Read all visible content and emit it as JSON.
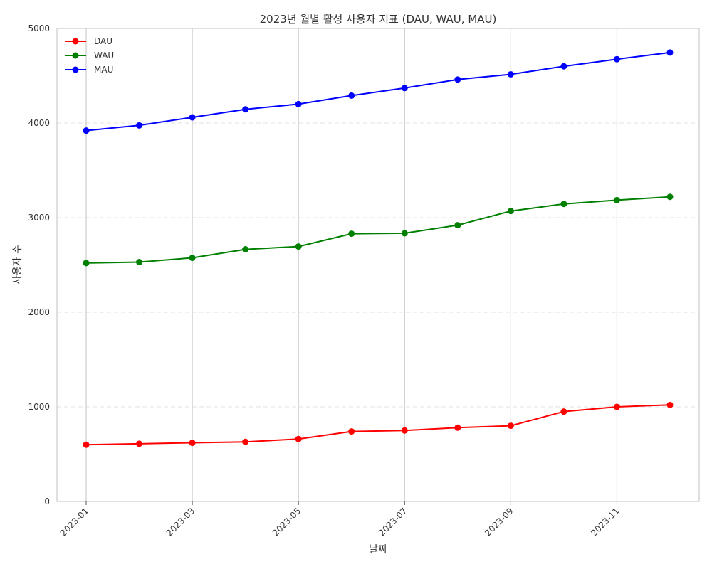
{
  "chart_data": {
    "type": "line",
    "title": "2023년 월별 활성 사용자 지표 (DAU, WAU, MAU)",
    "xlabel": "날짜",
    "ylabel": "사용자 수",
    "x": [
      "2023-01",
      "2023-02",
      "2023-03",
      "2023-04",
      "2023-05",
      "2023-06",
      "2023-07",
      "2023-08",
      "2023-09",
      "2023-10",
      "2023-11",
      "2023-12"
    ],
    "x_tick_labels": [
      "2023-01",
      "2023-03",
      "2023-05",
      "2023-07",
      "2023-09",
      "2023-11"
    ],
    "y_ticks": [
      0,
      1000,
      2000,
      3000,
      4000,
      5000
    ],
    "ylim": [
      0,
      5000
    ],
    "grid": {
      "x": "solid",
      "y": "dashed"
    },
    "legend_position": "top-left",
    "series": [
      {
        "name": "DAU",
        "color": "#ff0000",
        "values": [
          600,
          610,
          620,
          630,
          660,
          740,
          750,
          780,
          800,
          950,
          1000,
          1020
        ]
      },
      {
        "name": "WAU",
        "color": "#008000",
        "values": [
          2520,
          2530,
          2575,
          2665,
          2695,
          2830,
          2835,
          2920,
          3070,
          3145,
          3185,
          3220
        ]
      },
      {
        "name": "MAU",
        "color": "#0000ff",
        "values": [
          3920,
          3975,
          4060,
          4145,
          4200,
          4290,
          4370,
          4460,
          4515,
          4600,
          4675,
          4745
        ]
      }
    ]
  }
}
